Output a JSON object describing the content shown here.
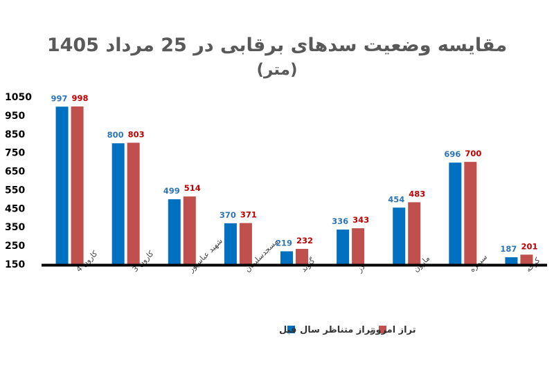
{
  "chart_data": {
    "type": "bar",
    "title_line1": "مقایسه وضعیت سدهای برقابی در 25 مرداد 1405",
    "title_line2": "(متر)",
    "categories": [
      "کارون 4",
      "کارون 3",
      "شهید عباسپور",
      "مسجدسلیمان",
      "گتوند",
      "دز",
      "مارون",
      "سیمره",
      "کرخه"
    ],
    "series": [
      {
        "name": "تراز متناظر سال قبل",
        "color": "#0070C0",
        "values": [
          997,
          800,
          499,
          370,
          219,
          336,
          454,
          696,
          187
        ]
      },
      {
        "name": "تراز امروز",
        "color": "#C0504D",
        "values": [
          998,
          803,
          514,
          371,
          232,
          343,
          483,
          700,
          201
        ]
      }
    ],
    "label_colors": [
      "#2E75B6",
      "#C00000"
    ],
    "y_ticks": [
      "1050",
      "950",
      "850",
      "750",
      "650",
      "550",
      "450",
      "350",
      "250",
      "150"
    ],
    "ylim": [
      150,
      1050
    ],
    "grid": false,
    "legend": "bottom"
  }
}
